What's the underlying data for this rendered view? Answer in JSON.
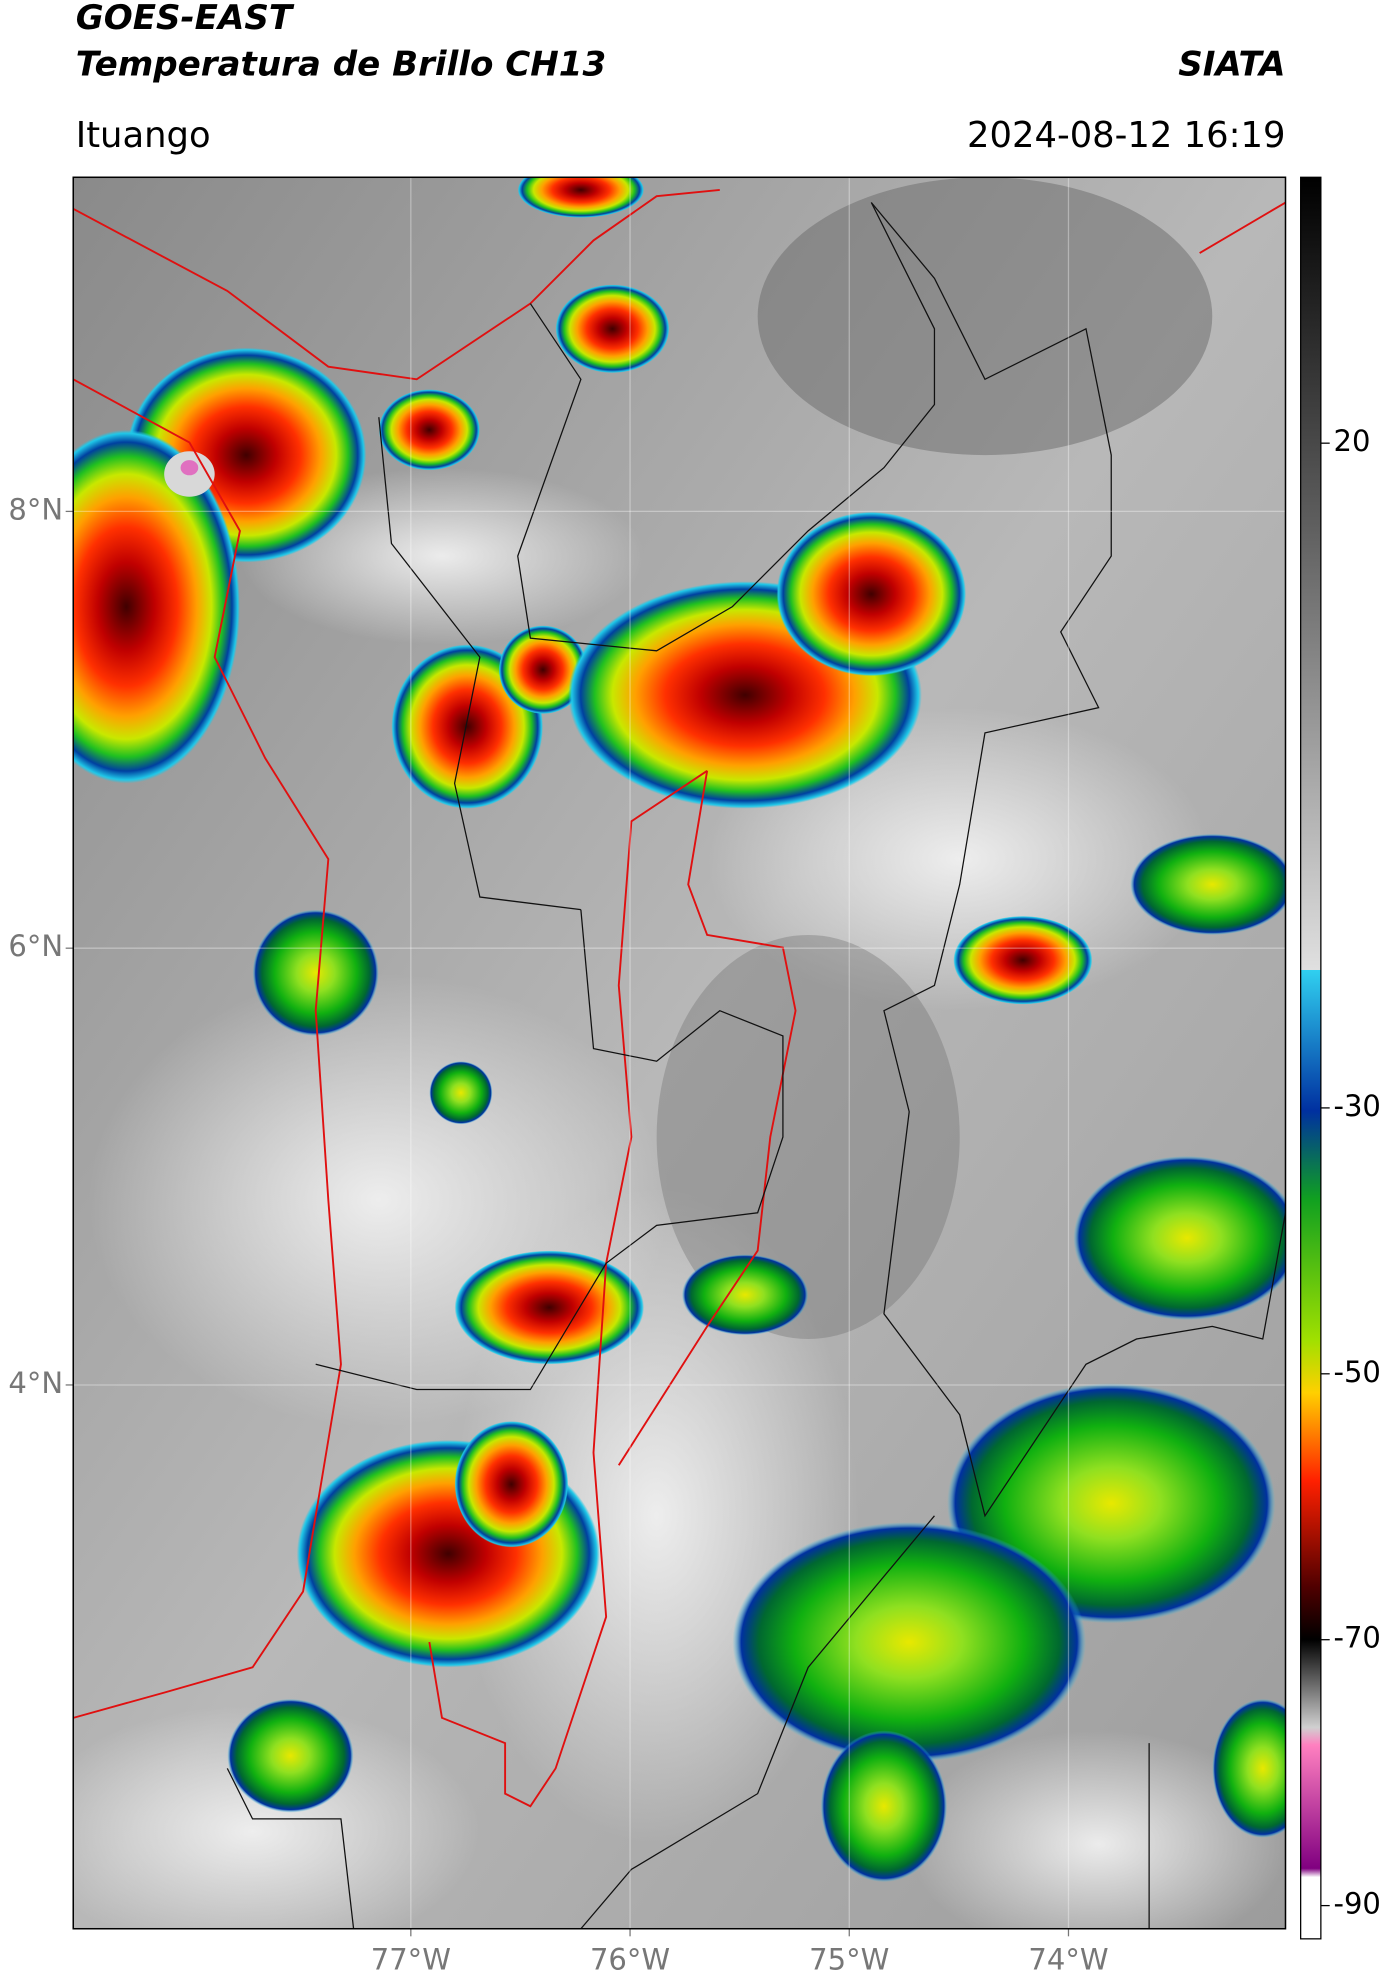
{
  "header": {
    "title": "GOES-EAST",
    "subtitle": "Temperatura de Brillo CH13",
    "brand": "SIATA",
    "location": "Ituango",
    "datetime": "2024-08-12 16:19"
  },
  "map": {
    "lonlim": [
      -78.54,
      -73.01
    ],
    "latlim": [
      1.51,
      9.53
    ],
    "lon_ticks": [
      {
        "value": -77,
        "label": "77°W"
      },
      {
        "value": -76,
        "label": "76°W"
      },
      {
        "value": -75,
        "label": "75°W"
      },
      {
        "value": -74,
        "label": "74°W"
      }
    ],
    "lat_ticks": [
      {
        "value": 8,
        "label": "8°N"
      },
      {
        "value": 6,
        "label": "6°N"
      },
      {
        "value": 4,
        "label": "4°N"
      }
    ],
    "grid": true
  },
  "colorbar": {
    "lim": [
      -92.5,
      40
    ],
    "ticks": [
      20,
      -30,
      -50,
      -70,
      -90
    ]
  }
}
